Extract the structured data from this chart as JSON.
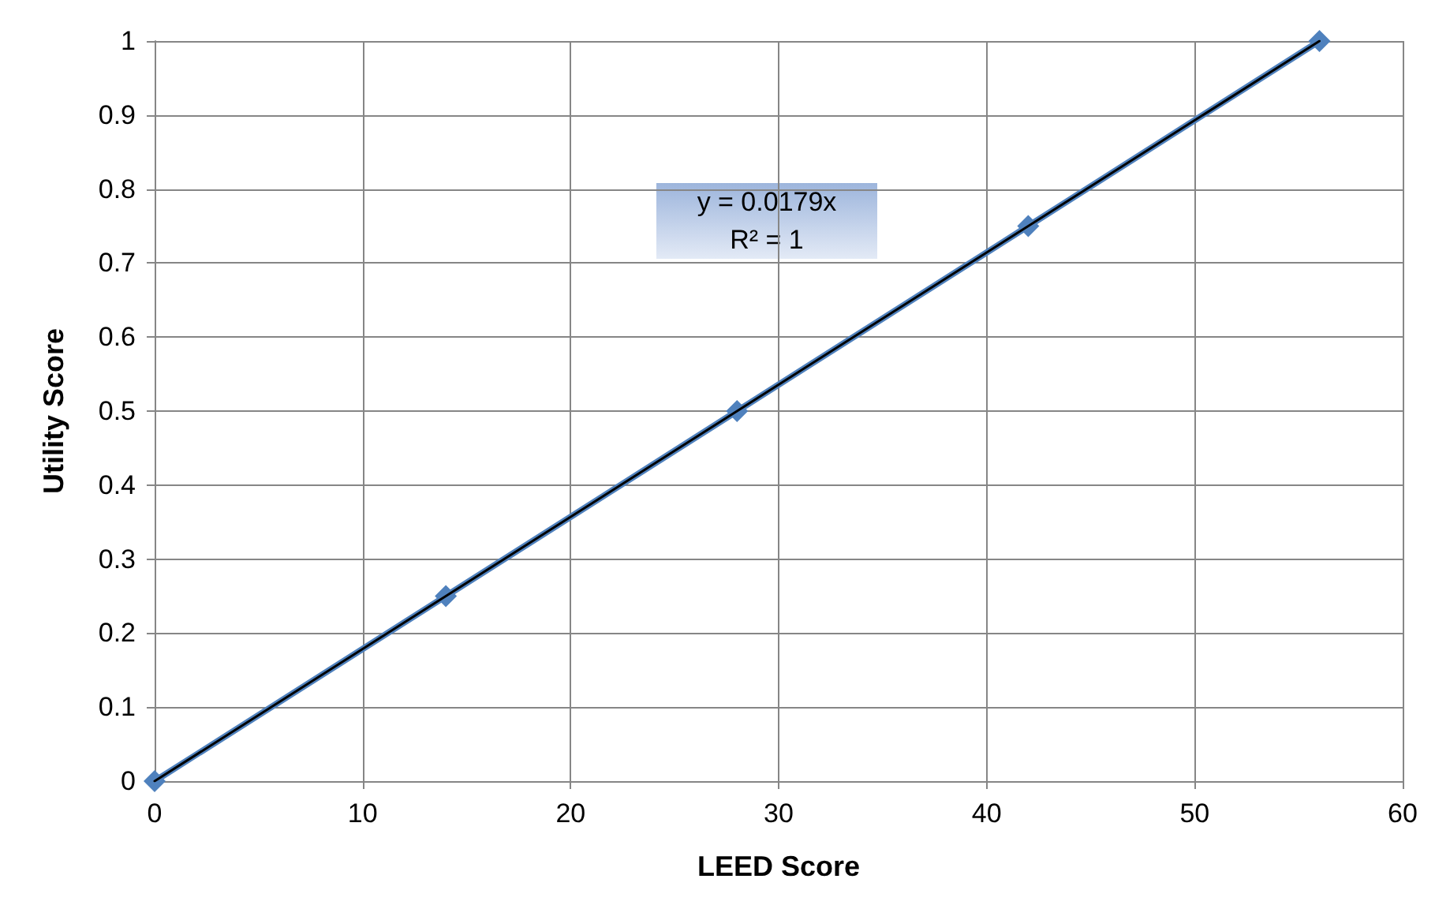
{
  "chart_data": {
    "type": "line",
    "xlabel": "LEED Score",
    "ylabel": "Utility Score",
    "xlim": [
      0,
      60
    ],
    "xticks": [
      0,
      10,
      20,
      30,
      40,
      50,
      60
    ],
    "ylim": [
      0,
      1
    ],
    "yticks": [
      0,
      0.1,
      0.2,
      0.3,
      0.4,
      0.5,
      0.6,
      0.7,
      0.8,
      0.9,
      1
    ],
    "grid": true,
    "series": [
      {
        "color": "#4f81bd",
        "marker": "diamond",
        "x": [
          0,
          14,
          28,
          42,
          56
        ],
        "values": [
          0,
          0.25,
          0.5,
          0.75,
          1
        ]
      },
      {
        "color": "#000000",
        "marker": "none",
        "x": [
          0,
          56
        ],
        "values": [
          0,
          1
        ]
      }
    ],
    "annotations": [
      "y = 0.0179x",
      "R² = 1"
    ]
  }
}
